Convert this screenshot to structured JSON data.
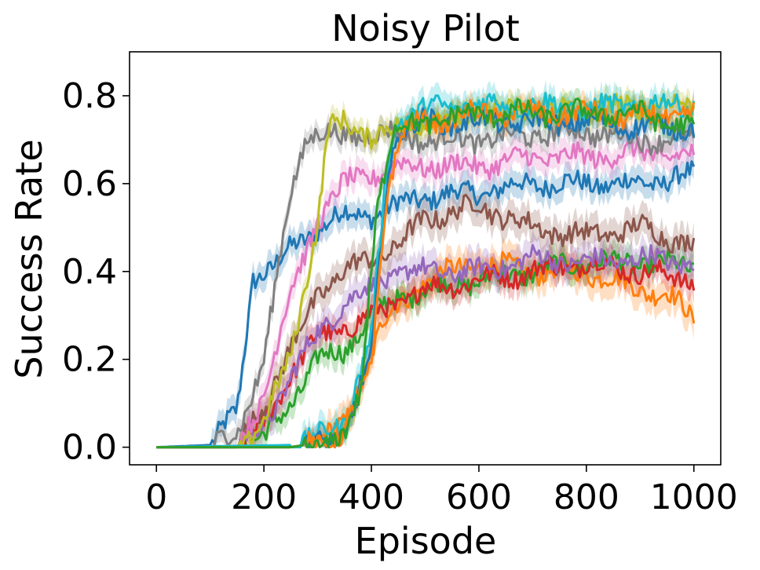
{
  "chart_data": {
    "type": "line",
    "title": "Noisy Pilot",
    "xlabel": "Episode",
    "ylabel": "Success Rate",
    "xlim": [
      -50,
      1050
    ],
    "ylim": [
      -0.04,
      0.9
    ],
    "xticks": [
      0,
      200,
      400,
      600,
      800,
      1000
    ],
    "yticks": [
      0.0,
      0.2,
      0.4,
      0.6,
      0.8
    ],
    "xtick_labels": [
      "0",
      "200",
      "400",
      "600",
      "800",
      "1000"
    ],
    "ytick_labels": [
      "0.0",
      "0.2",
      "0.4",
      "0.6",
      "0.8"
    ],
    "grid": false,
    "legend": "none",
    "shaded_band": "variance around each series",
    "series": [
      {
        "color": "#1f77b4",
        "x": [
          0,
          100,
          150,
          180,
          220,
          250,
          300,
          350,
          400,
          500,
          600,
          700,
          800,
          900,
          1000
        ],
        "y": [
          0,
          0.005,
          0.08,
          0.39,
          0.41,
          0.45,
          0.5,
          0.53,
          0.53,
          0.57,
          0.58,
          0.6,
          0.6,
          0.6,
          0.62
        ],
        "band": 0.03
      },
      {
        "color": "#ff7f0e",
        "x": [
          0,
          250,
          300,
          350,
          380,
          420,
          450,
          500,
          600,
          700,
          800,
          900,
          950,
          1000
        ],
        "y": [
          0,
          0,
          0.01,
          0.05,
          0.15,
          0.28,
          0.32,
          0.38,
          0.42,
          0.4,
          0.4,
          0.36,
          0.35,
          0.29
        ],
        "band": 0.035
      },
      {
        "color": "#2ca02c",
        "x": [
          0,
          150,
          200,
          250,
          300,
          350,
          400,
          450,
          500,
          600,
          700,
          800,
          900,
          1000
        ],
        "y": [
          0,
          0,
          0.02,
          0.1,
          0.2,
          0.22,
          0.3,
          0.34,
          0.36,
          0.38,
          0.4,
          0.42,
          0.42,
          0.41
        ],
        "band": 0.03
      },
      {
        "color": "#d62728",
        "x": [
          0,
          150,
          200,
          250,
          300,
          350,
          400,
          450,
          500,
          600,
          700,
          800,
          900,
          1000
        ],
        "y": [
          0,
          0,
          0.05,
          0.17,
          0.25,
          0.27,
          0.3,
          0.33,
          0.36,
          0.38,
          0.4,
          0.42,
          0.4,
          0.38
        ],
        "band": 0.03
      },
      {
        "color": "#9467bd",
        "x": [
          0,
          150,
          200,
          250,
          300,
          350,
          400,
          450,
          500,
          600,
          700,
          800,
          900,
          1000
        ],
        "y": [
          0,
          0,
          0.05,
          0.16,
          0.26,
          0.33,
          0.36,
          0.4,
          0.4,
          0.4,
          0.43,
          0.42,
          0.43,
          0.42
        ],
        "band": 0.035
      },
      {
        "color": "#8c564b",
        "x": [
          0,
          150,
          200,
          250,
          300,
          350,
          400,
          450,
          500,
          600,
          700,
          800,
          900,
          1000
        ],
        "y": [
          0,
          0,
          0.1,
          0.22,
          0.35,
          0.4,
          0.43,
          0.46,
          0.52,
          0.55,
          0.5,
          0.48,
          0.5,
          0.46
        ],
        "band": 0.035
      },
      {
        "color": "#e377c2",
        "x": [
          0,
          150,
          200,
          250,
          300,
          350,
          400,
          450,
          500,
          600,
          700,
          800,
          900,
          1000
        ],
        "y": [
          0,
          0,
          0.12,
          0.35,
          0.52,
          0.6,
          0.62,
          0.64,
          0.64,
          0.64,
          0.66,
          0.66,
          0.67,
          0.66
        ],
        "band": 0.03
      },
      {
        "color": "#7f7f7f",
        "x": [
          0,
          100,
          150,
          200,
          250,
          280,
          300,
          350,
          400,
          500,
          600,
          700,
          800,
          900,
          1000
        ],
        "y": [
          0,
          0,
          0.03,
          0.2,
          0.58,
          0.71,
          0.72,
          0.7,
          0.72,
          0.7,
          0.7,
          0.71,
          0.72,
          0.7,
          0.7
        ],
        "band": 0.025
      },
      {
        "color": "#bcbd22",
        "x": [
          0,
          150,
          200,
          250,
          300,
          320,
          350,
          400,
          450,
          500,
          600,
          700,
          800,
          900,
          1000
        ],
        "y": [
          0,
          0,
          0.05,
          0.22,
          0.5,
          0.72,
          0.75,
          0.7,
          0.73,
          0.74,
          0.76,
          0.77,
          0.77,
          0.78,
          0.78
        ],
        "band": 0.025
      },
      {
        "color": "#17becf",
        "x": [
          0,
          250,
          300,
          350,
          400,
          430,
          450,
          500,
          600,
          700,
          800,
          900,
          1000
        ],
        "y": [
          0,
          0.005,
          0.02,
          0.06,
          0.25,
          0.65,
          0.75,
          0.77,
          0.78,
          0.78,
          0.77,
          0.78,
          0.78
        ],
        "band": 0.03
      },
      {
        "color": "#1f77b4",
        "x": [
          0,
          250,
          300,
          350,
          400,
          430,
          450,
          500,
          600,
          700,
          800,
          900,
          1000
        ],
        "y": [
          0,
          0,
          0.01,
          0.03,
          0.2,
          0.62,
          0.72,
          0.74,
          0.74,
          0.74,
          0.74,
          0.73,
          0.73
        ],
        "band": 0.025
      },
      {
        "color": "#ff7f0e",
        "x": [
          0,
          250,
          300,
          350,
          400,
          430,
          460,
          500,
          600,
          700,
          800,
          900,
          1000
        ],
        "y": [
          0,
          0,
          0.01,
          0.03,
          0.18,
          0.6,
          0.72,
          0.74,
          0.76,
          0.76,
          0.76,
          0.75,
          0.76
        ],
        "band": 0.025
      },
      {
        "color": "#2ca02c",
        "x": [
          0,
          250,
          300,
          350,
          380,
          410,
          440,
          500,
          600,
          700,
          800,
          900,
          1000
        ],
        "y": [
          0,
          0,
          0.01,
          0.02,
          0.12,
          0.55,
          0.72,
          0.74,
          0.76,
          0.76,
          0.76,
          0.76,
          0.72
        ],
        "band": 0.025
      }
    ]
  }
}
